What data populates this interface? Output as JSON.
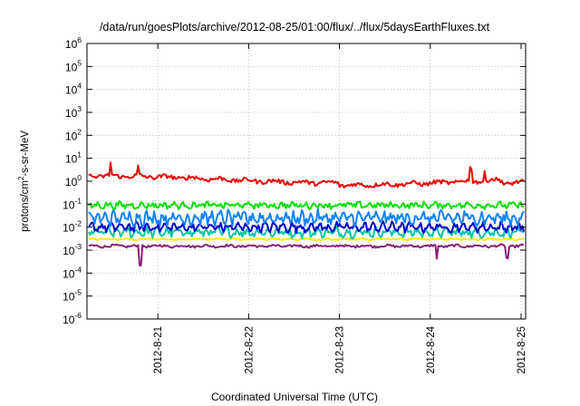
{
  "chart_data": {
    "type": "line",
    "title": "/data/run/goesPlots/archive/2012-08-25/01:00/flux/../flux/5daysEarthFluxes.txt",
    "xlabel": "Coordinated Universal Time (UTC)",
    "ylabel": "protons/cm²-s-sr-MeV",
    "ylabel_parts": [
      "protons/cm",
      "2",
      "-s-sr-MeV"
    ],
    "y_scale": "log",
    "ylim": [
      1e-06,
      1000000
    ],
    "y_ticks": [
      {
        "value": 1e-06,
        "base": "10",
        "exp": "-6"
      },
      {
        "value": 1e-05,
        "base": "10",
        "exp": "-5"
      },
      {
        "value": 0.0001,
        "base": "10",
        "exp": "-4"
      },
      {
        "value": 0.001,
        "base": "10",
        "exp": "-3"
      },
      {
        "value": 0.01,
        "base": "10",
        "exp": "-2"
      },
      {
        "value": 0.1,
        "base": "10",
        "exp": "-1"
      },
      {
        "value": 1,
        "base": "10",
        "exp": "0"
      },
      {
        "value": 10,
        "base": "10",
        "exp": "1"
      },
      {
        "value": 100,
        "base": "10",
        "exp": "2"
      },
      {
        "value": 1000,
        "base": "10",
        "exp": "3"
      },
      {
        "value": 10000,
        "base": "10",
        "exp": "4"
      },
      {
        "value": 100000,
        "base": "10",
        "exp": "5"
      },
      {
        "value": 1000000,
        "base": "10",
        "exp": "6"
      }
    ],
    "xlim": [
      -0.78,
      4.05
    ],
    "x_ticks": [
      {
        "value": 0,
        "label": "2012-8-21"
      },
      {
        "value": 1,
        "label": "2012-8-22"
      },
      {
        "value": 2,
        "label": "2012-8-23"
      },
      {
        "value": 3,
        "label": "2012-8-24"
      },
      {
        "value": 4,
        "label": "2012-8-25"
      }
    ],
    "grid": true,
    "series": [
      {
        "color": "#ffee00",
        "level": 0.003,
        "noise": 0.04,
        "period": 0.2,
        "amp": 0.02,
        "spikes": []
      },
      {
        "color": "#8a1f74",
        "level": 0.0015,
        "noise": 0.05,
        "period": 0.25,
        "amp": 0.03,
        "spikes": [
          {
            "x": -0.19,
            "f": 0.15
          },
          {
            "x": 3.07,
            "f": 0.3
          },
          {
            "x": 3.85,
            "f": 0.3
          }
        ]
      },
      {
        "color": "#00c4a8",
        "level": 0.006,
        "noise": 0.16,
        "period": 0.11,
        "amp": 0.12,
        "spikes": []
      },
      {
        "color": "#0000cc",
        "level": 0.01,
        "noise": 0.15,
        "period": 0.1,
        "amp": 0.12,
        "spikes": []
      },
      {
        "color": "#0f82ff",
        "level": 0.025,
        "noise": 0.22,
        "period": 0.09,
        "amp": 0.18,
        "spikes": []
      },
      {
        "color": "#00e000",
        "level": 0.09,
        "noise": 0.12,
        "period": 0.12,
        "amp": 0.06,
        "spikes": []
      },
      {
        "color": "#ee0000",
        "level": 1.2,
        "noise": 0.09,
        "period": 0.3,
        "amp": 0.05,
        "spikes": [
          {
            "x": -0.52,
            "f": 3.5
          },
          {
            "x": -0.22,
            "f": 2.5
          },
          {
            "x": 3.45,
            "f": 3.5
          },
          {
            "x": 3.6,
            "f": 2.2
          }
        ]
      }
    ]
  }
}
